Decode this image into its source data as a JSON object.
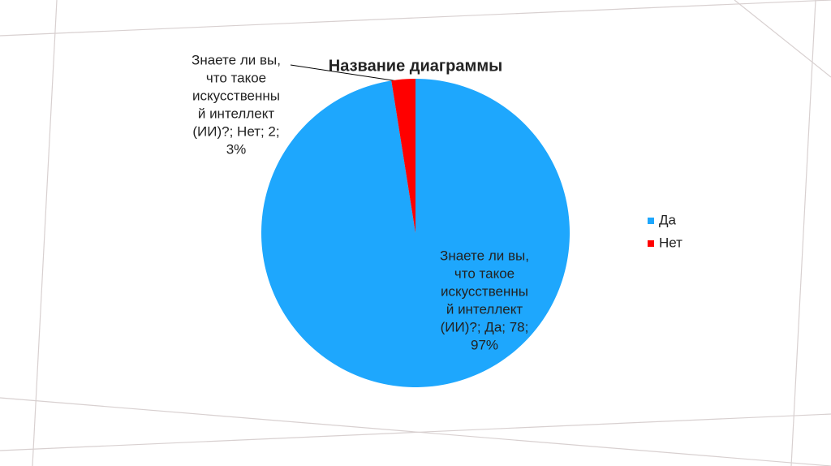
{
  "chart_data": {
    "type": "pie",
    "title": "Название диаграммы",
    "categories": [
      "Да",
      "Нет"
    ],
    "values": [
      78,
      2
    ],
    "colors": [
      "#1ea7fd",
      "#ff0000"
    ],
    "value_labels": [
      [
        "Знаете ли вы,",
        "что такое",
        "искусственны",
        "й интеллект",
        "(ИИ)?; Да; 78;",
        "97%"
      ],
      [
        "Знаете ли вы,",
        "что такое",
        "искусственны",
        "й интеллект",
        "(ИИ)?; Нет; 2;",
        "3%"
      ]
    ],
    "legend": "right"
  }
}
